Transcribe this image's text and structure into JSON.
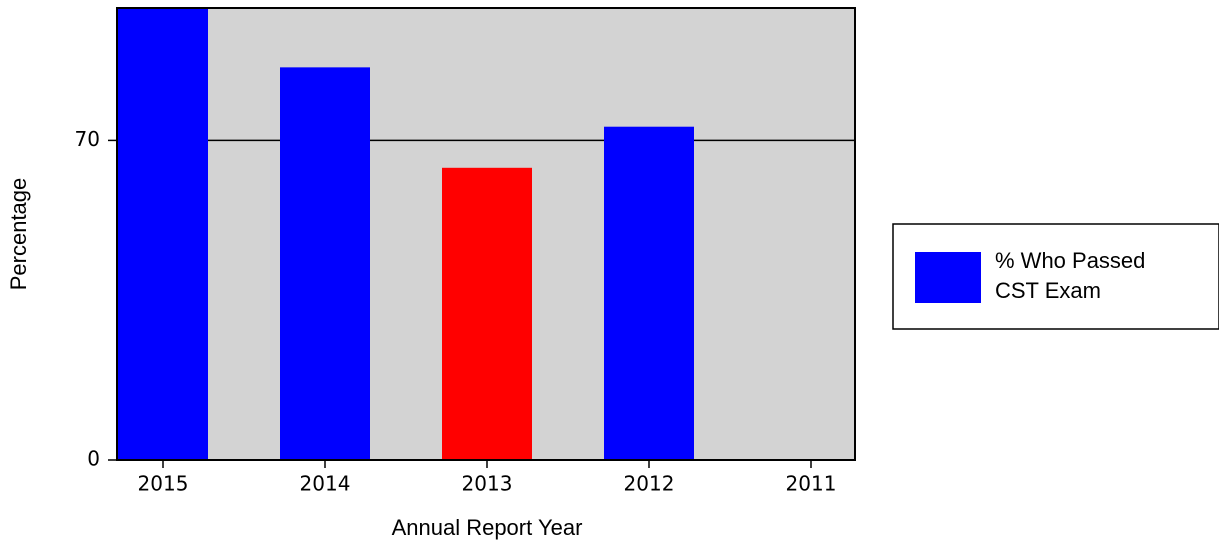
{
  "chart_data": {
    "type": "bar",
    "x_label": "Annual Report Year",
    "y_label": "Percentage",
    "categories": [
      "2015",
      "2014",
      "2013",
      "2012",
      "2011"
    ],
    "series": [
      {
        "name": "% Who Passed CST Exam",
        "color": "#0000ff",
        "values": [
          99,
          86,
          64,
          73,
          null
        ]
      }
    ],
    "highlight_index": 2,
    "highlight_color": "#ff0000",
    "ylim": [
      0,
      99
    ],
    "yticks": [
      0,
      70
    ],
    "grid": true,
    "legend": "right"
  }
}
